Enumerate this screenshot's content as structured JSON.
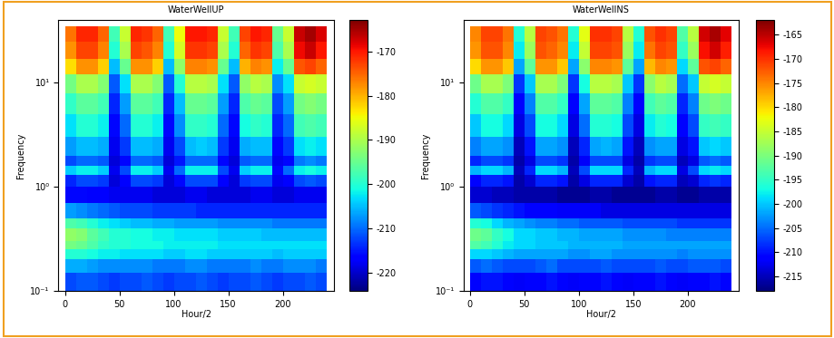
{
  "chart_data": [
    {
      "type": "heatmap",
      "title": "WaterWellUP",
      "x_label": "Hour/2",
      "y_label": "Frequency",
      "log": "y",
      "color": "jet",
      "xlim": [
        -6,
        247
      ],
      "ylim": [
        0.1,
        40
      ],
      "xticks": [
        0,
        50,
        100,
        150,
        200
      ],
      "yticks": [
        {
          "value": 0.1,
          "label": "10⁻¹"
        },
        {
          "value": 1,
          "label": "10⁰"
        },
        {
          "value": 10,
          "label": "10¹"
        }
      ],
      "x_edges": [
        0,
        10,
        20,
        30,
        40,
        50,
        60,
        70,
        80,
        90,
        100,
        110,
        120,
        130,
        140,
        150,
        160,
        170,
        180,
        190,
        200,
        210,
        220,
        230,
        240
      ],
      "y_edges": [
        0.1,
        0.15,
        0.2,
        0.25,
        0.3,
        0.4,
        0.5,
        0.7,
        1.0,
        1.3,
        1.6,
        2,
        3,
        5,
        8,
        12,
        17,
        25,
        35
      ],
      "cells": [
        [
          -212,
          -211,
          -211,
          -212,
          -213,
          -212,
          -212,
          -211,
          -212,
          -213,
          -212,
          -212,
          -211,
          -212,
          -213,
          -212,
          -212,
          -211,
          -212,
          -213,
          -212,
          -212,
          -211,
          -212
        ],
        [
          -206,
          -206,
          -207,
          -208,
          -208,
          -208,
          -208,
          -208,
          -209,
          -209,
          -209,
          -208,
          -208,
          -209,
          -209,
          -209,
          -209,
          -208,
          -209,
          -209,
          -208,
          -208,
          -208,
          -209
        ],
        [
          -200,
          -200,
          -201,
          -202,
          -202,
          -203,
          -203,
          -203,
          -203,
          -204,
          -204,
          -203,
          -203,
          -204,
          -204,
          -204,
          -204,
          -204,
          -204,
          -205,
          -204,
          -204,
          -204,
          -204
        ],
        [
          -194,
          -195,
          -197,
          -199,
          -200,
          -200,
          -201,
          -201,
          -201,
          -202,
          -202,
          -202,
          -202,
          -202,
          -203,
          -203,
          -203,
          -203,
          -203,
          -203,
          -203,
          -203,
          -203,
          -203
        ],
        [
          -192,
          -193,
          -196,
          -198,
          -200,
          -200,
          -201,
          -201,
          -202,
          -202,
          -203,
          -203,
          -203,
          -203,
          -204,
          -204,
          -204,
          -204,
          -205,
          -205,
          -205,
          -205,
          -205,
          -205
        ],
        [
          -197,
          -198,
          -200,
          -202,
          -203,
          -204,
          -205,
          -205,
          -206,
          -206,
          -207,
          -207,
          -207,
          -207,
          -208,
          -208,
          -208,
          -208,
          -208,
          -209,
          -209,
          -209,
          -209,
          -209
        ],
        [
          -207,
          -208,
          -209,
          -210,
          -211,
          -212,
          -212,
          -212,
          -213,
          -213,
          -213,
          -213,
          -214,
          -214,
          -214,
          -214,
          -214,
          -214,
          -214,
          -214,
          -214,
          -214,
          -214,
          -214
        ],
        [
          -216,
          -216,
          -217,
          -217,
          -218,
          -218,
          -218,
          -218,
          -219,
          -219,
          -219,
          -218,
          -218,
          -219,
          -219,
          -219,
          -219,
          -218,
          -218,
          -219,
          -219,
          -218,
          -218,
          -218
        ],
        [
          -214,
          -212,
          -212,
          -213,
          -219,
          -217,
          -212,
          -212,
          -213,
          -219,
          -216,
          -212,
          -212,
          -212,
          -217,
          -219,
          -213,
          -212,
          -212,
          -218,
          -217,
          -212,
          -211,
          -212
        ],
        [
          -204,
          -202,
          -202,
          -204,
          -218,
          -212,
          -202,
          -202,
          -204,
          -218,
          -210,
          -202,
          -202,
          -202,
          -212,
          -218,
          -204,
          -202,
          -202,
          -216,
          -210,
          -202,
          -201,
          -202
        ],
        [
          -212,
          -210,
          -210,
          -211,
          -219,
          -216,
          -210,
          -210,
          -211,
          -219,
          -215,
          -210,
          -210,
          -210,
          -216,
          -219,
          -211,
          -210,
          -210,
          -218,
          -216,
          -209,
          -208,
          -209
        ],
        [
          -207,
          -205,
          -205,
          -206,
          -218,
          -213,
          -205,
          -205,
          -206,
          -218,
          -212,
          -205,
          -204,
          -205,
          -213,
          -218,
          -206,
          -205,
          -205,
          -216,
          -213,
          -203,
          -202,
          -203
        ],
        [
          -203,
          -200,
          -200,
          -202,
          -216,
          -210,
          -200,
          -200,
          -202,
          -216,
          -208,
          -199,
          -199,
          -200,
          -210,
          -216,
          -201,
          -199,
          -200,
          -214,
          -210,
          -198,
          -197,
          -198
        ],
        [
          -199,
          -196,
          -196,
          -198,
          -214,
          -207,
          -196,
          -196,
          -198,
          -214,
          -205,
          -195,
          -195,
          -196,
          -207,
          -214,
          -197,
          -195,
          -196,
          -212,
          -207,
          -194,
          -193,
          -194
        ],
        [
          -194,
          -190,
          -190,
          -193,
          -211,
          -203,
          -190,
          -190,
          -193,
          -211,
          -200,
          -189,
          -189,
          -190,
          -203,
          -211,
          -192,
          -189,
          -190,
          -208,
          -203,
          -188,
          -187,
          -188
        ],
        [
          -183,
          -178,
          -178,
          -182,
          -205,
          -195,
          -178,
          -178,
          -182,
          -205,
          -192,
          -177,
          -177,
          -178,
          -195,
          -205,
          -180,
          -177,
          -178,
          -202,
          -195,
          -174,
          -173,
          -175
        ],
        [
          -178,
          -173,
          -173,
          -177,
          -200,
          -190,
          -173,
          -174,
          -177,
          -200,
          -187,
          -172,
          -172,
          -173,
          -190,
          -200,
          -175,
          -172,
          -173,
          -197,
          -190,
          -169,
          -167,
          -170
        ],
        [
          -176,
          -171,
          -171,
          -175,
          -198,
          -188,
          -171,
          -172,
          -175,
          -198,
          -185,
          -170,
          -170,
          -171,
          -188,
          -198,
          -173,
          -170,
          -171,
          -195,
          -188,
          -167,
          -165,
          -168
        ]
      ],
      "colorbar_range": [
        -224,
        -163
      ],
      "colorbar_ticks": [
        -220,
        -210,
        -200,
        -190,
        -180,
        -170
      ]
    },
    {
      "type": "heatmap",
      "title": "WaterWellNS",
      "x_label": "Hour/2",
      "y_label": "Frequency",
      "log": "y",
      "color": "jet",
      "xlim": [
        -6,
        247
      ],
      "ylim": [
        0.1,
        40
      ],
      "xticks": [
        0,
        50,
        100,
        150,
        200
      ],
      "yticks": [
        {
          "value": 0.1,
          "label": "10⁻¹"
        },
        {
          "value": 1,
          "label": "10⁰"
        },
        {
          "value": 10,
          "label": "10¹"
        }
      ],
      "x_edges": [
        0,
        10,
        20,
        30,
        40,
        50,
        60,
        70,
        80,
        90,
        100,
        110,
        120,
        130,
        140,
        150,
        160,
        170,
        180,
        190,
        200,
        210,
        220,
        230,
        240
      ],
      "y_edges": [
        0.1,
        0.15,
        0.2,
        0.25,
        0.3,
        0.4,
        0.5,
        0.7,
        1.0,
        1.3,
        1.6,
        2,
        3,
        5,
        8,
        12,
        17,
        25,
        35
      ],
      "cells": [
        [
          -211,
          -210,
          -210,
          -211,
          -212,
          -211,
          -211,
          -210,
          -211,
          -212,
          -211,
          -211,
          -210,
          -211,
          -212,
          -211,
          -211,
          -210,
          -211,
          -212,
          -211,
          -211,
          -210,
          -211
        ],
        [
          -206,
          -205,
          -206,
          -207,
          -207,
          -207,
          -206,
          -205,
          -207,
          -207,
          -207,
          -207,
          -206,
          -207,
          -207,
          -207,
          -207,
          -206,
          -207,
          -207,
          -206,
          -206,
          -206,
          -207
        ],
        [
          -199,
          -199,
          -200,
          -201,
          -202,
          -202,
          -202,
          -202,
          -202,
          -203,
          -203,
          -202,
          -202,
          -203,
          -203,
          -203,
          -203,
          -203,
          -203,
          -204,
          -203,
          -203,
          -203,
          -203
        ],
        [
          -193,
          -194,
          -196,
          -198,
          -199,
          -199,
          -200,
          -200,
          -200,
          -201,
          -201,
          -201,
          -201,
          -201,
          -202,
          -202,
          -202,
          -202,
          -202,
          -202,
          -202,
          -202,
          -202,
          -202
        ],
        [
          -191,
          -192,
          -195,
          -197,
          -199,
          -199,
          -200,
          -200,
          -201,
          -201,
          -202,
          -202,
          -202,
          -202,
          -203,
          -203,
          -203,
          -203,
          -204,
          -204,
          -204,
          -204,
          -204,
          -204
        ],
        [
          -196,
          -197,
          -199,
          -201,
          -202,
          -203,
          -204,
          -204,
          -205,
          -205,
          -206,
          -206,
          -206,
          -206,
          -207,
          -207,
          -207,
          -207,
          -207,
          -208,
          -208,
          -208,
          -208,
          -208
        ],
        [
          -206,
          -207,
          -208,
          -209,
          -210,
          -211,
          -211,
          -211,
          -212,
          -212,
          -212,
          -212,
          -213,
          -213,
          -213,
          -213,
          -213,
          -213,
          -213,
          -213,
          -213,
          -213,
          -213,
          -213
        ],
        [
          -214,
          -214,
          -215,
          -215,
          -216,
          -216,
          -216,
          -216,
          -217,
          -217,
          -217,
          -216,
          -216,
          -217,
          -217,
          -217,
          -217,
          -216,
          -216,
          -217,
          -217,
          -216,
          -216,
          -216
        ],
        [
          -211,
          -209,
          -209,
          -210,
          -216,
          -214,
          -209,
          -209,
          -210,
          -216,
          -213,
          -209,
          -209,
          -209,
          -214,
          -216,
          -210,
          -209,
          -209,
          -215,
          -214,
          -209,
          -208,
          -209
        ],
        [
          -201,
          -199,
          -199,
          -201,
          -215,
          -209,
          -199,
          -199,
          -201,
          -215,
          -207,
          -199,
          -199,
          -199,
          -209,
          -215,
          -201,
          -199,
          -199,
          -213,
          -207,
          -199,
          -198,
          -199
        ],
        [
          -209,
          -207,
          -207,
          -208,
          -216,
          -213,
          -207,
          -207,
          -208,
          -216,
          -212,
          -207,
          -207,
          -207,
          -213,
          -216,
          -208,
          -207,
          -207,
          -215,
          -213,
          -206,
          -205,
          -206
        ],
        [
          -204,
          -202,
          -202,
          -203,
          -215,
          -210,
          -202,
          -202,
          -203,
          -215,
          -209,
          -202,
          -201,
          -202,
          -210,
          -215,
          -203,
          -202,
          -202,
          -213,
          -210,
          -200,
          -199,
          -200
        ],
        [
          -200,
          -197,
          -197,
          -199,
          -213,
          -207,
          -197,
          -197,
          -199,
          -213,
          -205,
          -196,
          -196,
          -197,
          -207,
          -213,
          -198,
          -196,
          -197,
          -211,
          -207,
          -195,
          -194,
          -195
        ],
        [
          -196,
          -193,
          -193,
          -195,
          -211,
          -204,
          -193,
          -193,
          -195,
          -211,
          -202,
          -192,
          -192,
          -193,
          -204,
          -211,
          -194,
          -192,
          -193,
          -209,
          -204,
          -191,
          -190,
          -191
        ],
        [
          -191,
          -187,
          -187,
          -190,
          -208,
          -200,
          -187,
          -187,
          -190,
          -208,
          -197,
          -186,
          -186,
          -187,
          -200,
          -208,
          -189,
          -186,
          -187,
          -205,
          -200,
          -185,
          -184,
          -185
        ],
        [
          -180,
          -176,
          -176,
          -179,
          -202,
          -192,
          -176,
          -176,
          -179,
          -202,
          -189,
          -175,
          -175,
          -176,
          -192,
          -202,
          -178,
          -175,
          -176,
          -199,
          -192,
          -172,
          -171,
          -173
        ],
        [
          -176,
          -172,
          -172,
          -175,
          -198,
          -188,
          -172,
          -173,
          -175,
          -198,
          -185,
          -171,
          -171,
          -172,
          -188,
          -198,
          -174,
          -171,
          -172,
          -195,
          -188,
          -168,
          -166,
          -169
        ],
        [
          -175,
          -171,
          -171,
          -174,
          -196,
          -186,
          -171,
          -172,
          -174,
          -196,
          -183,
          -170,
          -170,
          -171,
          -186,
          -196,
          -172,
          -170,
          -171,
          -193,
          -186,
          -166,
          -164,
          -167
        ]
      ],
      "colorbar_range": [
        -218,
        -162
      ],
      "colorbar_ticks": [
        -215,
        -210,
        -205,
        -200,
        -195,
        -190,
        -185,
        -180,
        -175,
        -170,
        -165
      ]
    }
  ]
}
